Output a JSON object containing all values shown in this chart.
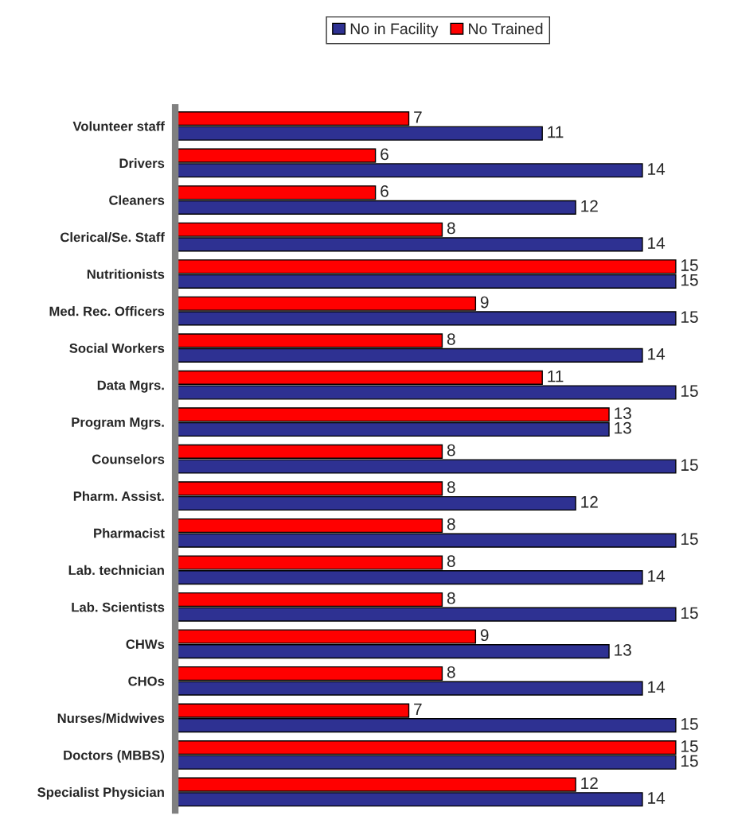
{
  "chart_data": {
    "type": "bar",
    "orientation": "horizontal",
    "data_labels": true,
    "legend": "top",
    "grid": false,
    "categories": [
      "Volunteer staff",
      "Drivers",
      "Cleaners",
      "Clerical/Se. Staff",
      "Nutritionists",
      "Med. Rec. Officers",
      "Social Workers",
      "Data Mgrs.",
      "Program Mgrs.",
      "Counselors",
      "Pharm. Assist.",
      "Pharmacist",
      "Lab. technician",
      "Lab. Scientists",
      "CHWs",
      "CHOs",
      "Nurses/Midwives",
      "Doctors (MBBS)",
      "Specialist Physician"
    ],
    "series": [
      {
        "name": "No in Facility",
        "color": "#2e3192",
        "values": [
          11,
          14,
          12,
          14,
          15,
          15,
          14,
          15,
          13,
          15,
          12,
          15,
          14,
          15,
          13,
          14,
          15,
          15,
          14
        ]
      },
      {
        "name": "No Trained",
        "color": "#ff0000",
        "values": [
          7,
          6,
          6,
          8,
          15,
          9,
          8,
          11,
          13,
          8,
          8,
          8,
          8,
          8,
          9,
          8,
          7,
          15,
          12
        ]
      }
    ]
  }
}
